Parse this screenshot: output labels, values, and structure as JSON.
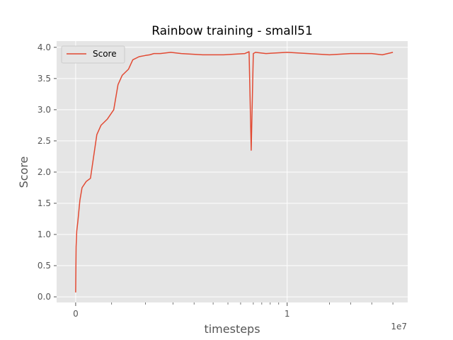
{
  "chart_data": {
    "type": "line",
    "title": "Rainbow training - small51",
    "xlabel": "timesteps",
    "ylabel": "Score",
    "x_offset_label": "1e7",
    "x_tick_labels": [
      {
        "value": 0,
        "label": "0"
      },
      {
        "value": 1,
        "label": "1"
      }
    ],
    "x_unit_multiplier": 10000000,
    "x_range_in_1e7": [
      -0.09,
      1.57
    ],
    "ylim": [
      -0.09,
      4.1
    ],
    "y_ticks": [
      0.0,
      0.5,
      1.0,
      1.5,
      2.0,
      2.5,
      3.0,
      3.5,
      4.0
    ],
    "y_tick_labels": [
      "0.0",
      "0.5",
      "1.0",
      "1.5",
      "2.0",
      "2.5",
      "3.0",
      "3.5",
      "4.0"
    ],
    "grid": true,
    "legend": {
      "placement": "top-left"
    },
    "colors": {
      "line": "#E24A33",
      "background": "#E5E5E5",
      "grid": "#FFFFFF",
      "text": "#555555"
    },
    "series": [
      {
        "name": "Score",
        "x": [
          0.0,
          0.002,
          0.005,
          0.01,
          0.02,
          0.03,
          0.05,
          0.07,
          0.1,
          0.12,
          0.15,
          0.18,
          0.2,
          0.22,
          0.25,
          0.27,
          0.3,
          0.33,
          0.35,
          0.37,
          0.4,
          0.45,
          0.5,
          0.6,
          0.7,
          0.8,
          0.82,
          0.83,
          0.84,
          0.85,
          0.9,
          1.0,
          1.1,
          1.2,
          1.3,
          1.4,
          1.45,
          1.5
        ],
        "y": [
          0.07,
          0.8,
          1.05,
          1.2,
          1.55,
          1.75,
          1.85,
          1.9,
          2.6,
          2.75,
          2.85,
          3.0,
          3.4,
          3.55,
          3.65,
          3.8,
          3.85,
          3.87,
          3.88,
          3.9,
          3.9,
          3.92,
          3.9,
          3.88,
          3.88,
          3.9,
          3.93,
          2.35,
          3.9,
          3.92,
          3.9,
          3.92,
          3.9,
          3.88,
          3.9,
          3.9,
          3.88,
          3.92
        ]
      }
    ]
  }
}
